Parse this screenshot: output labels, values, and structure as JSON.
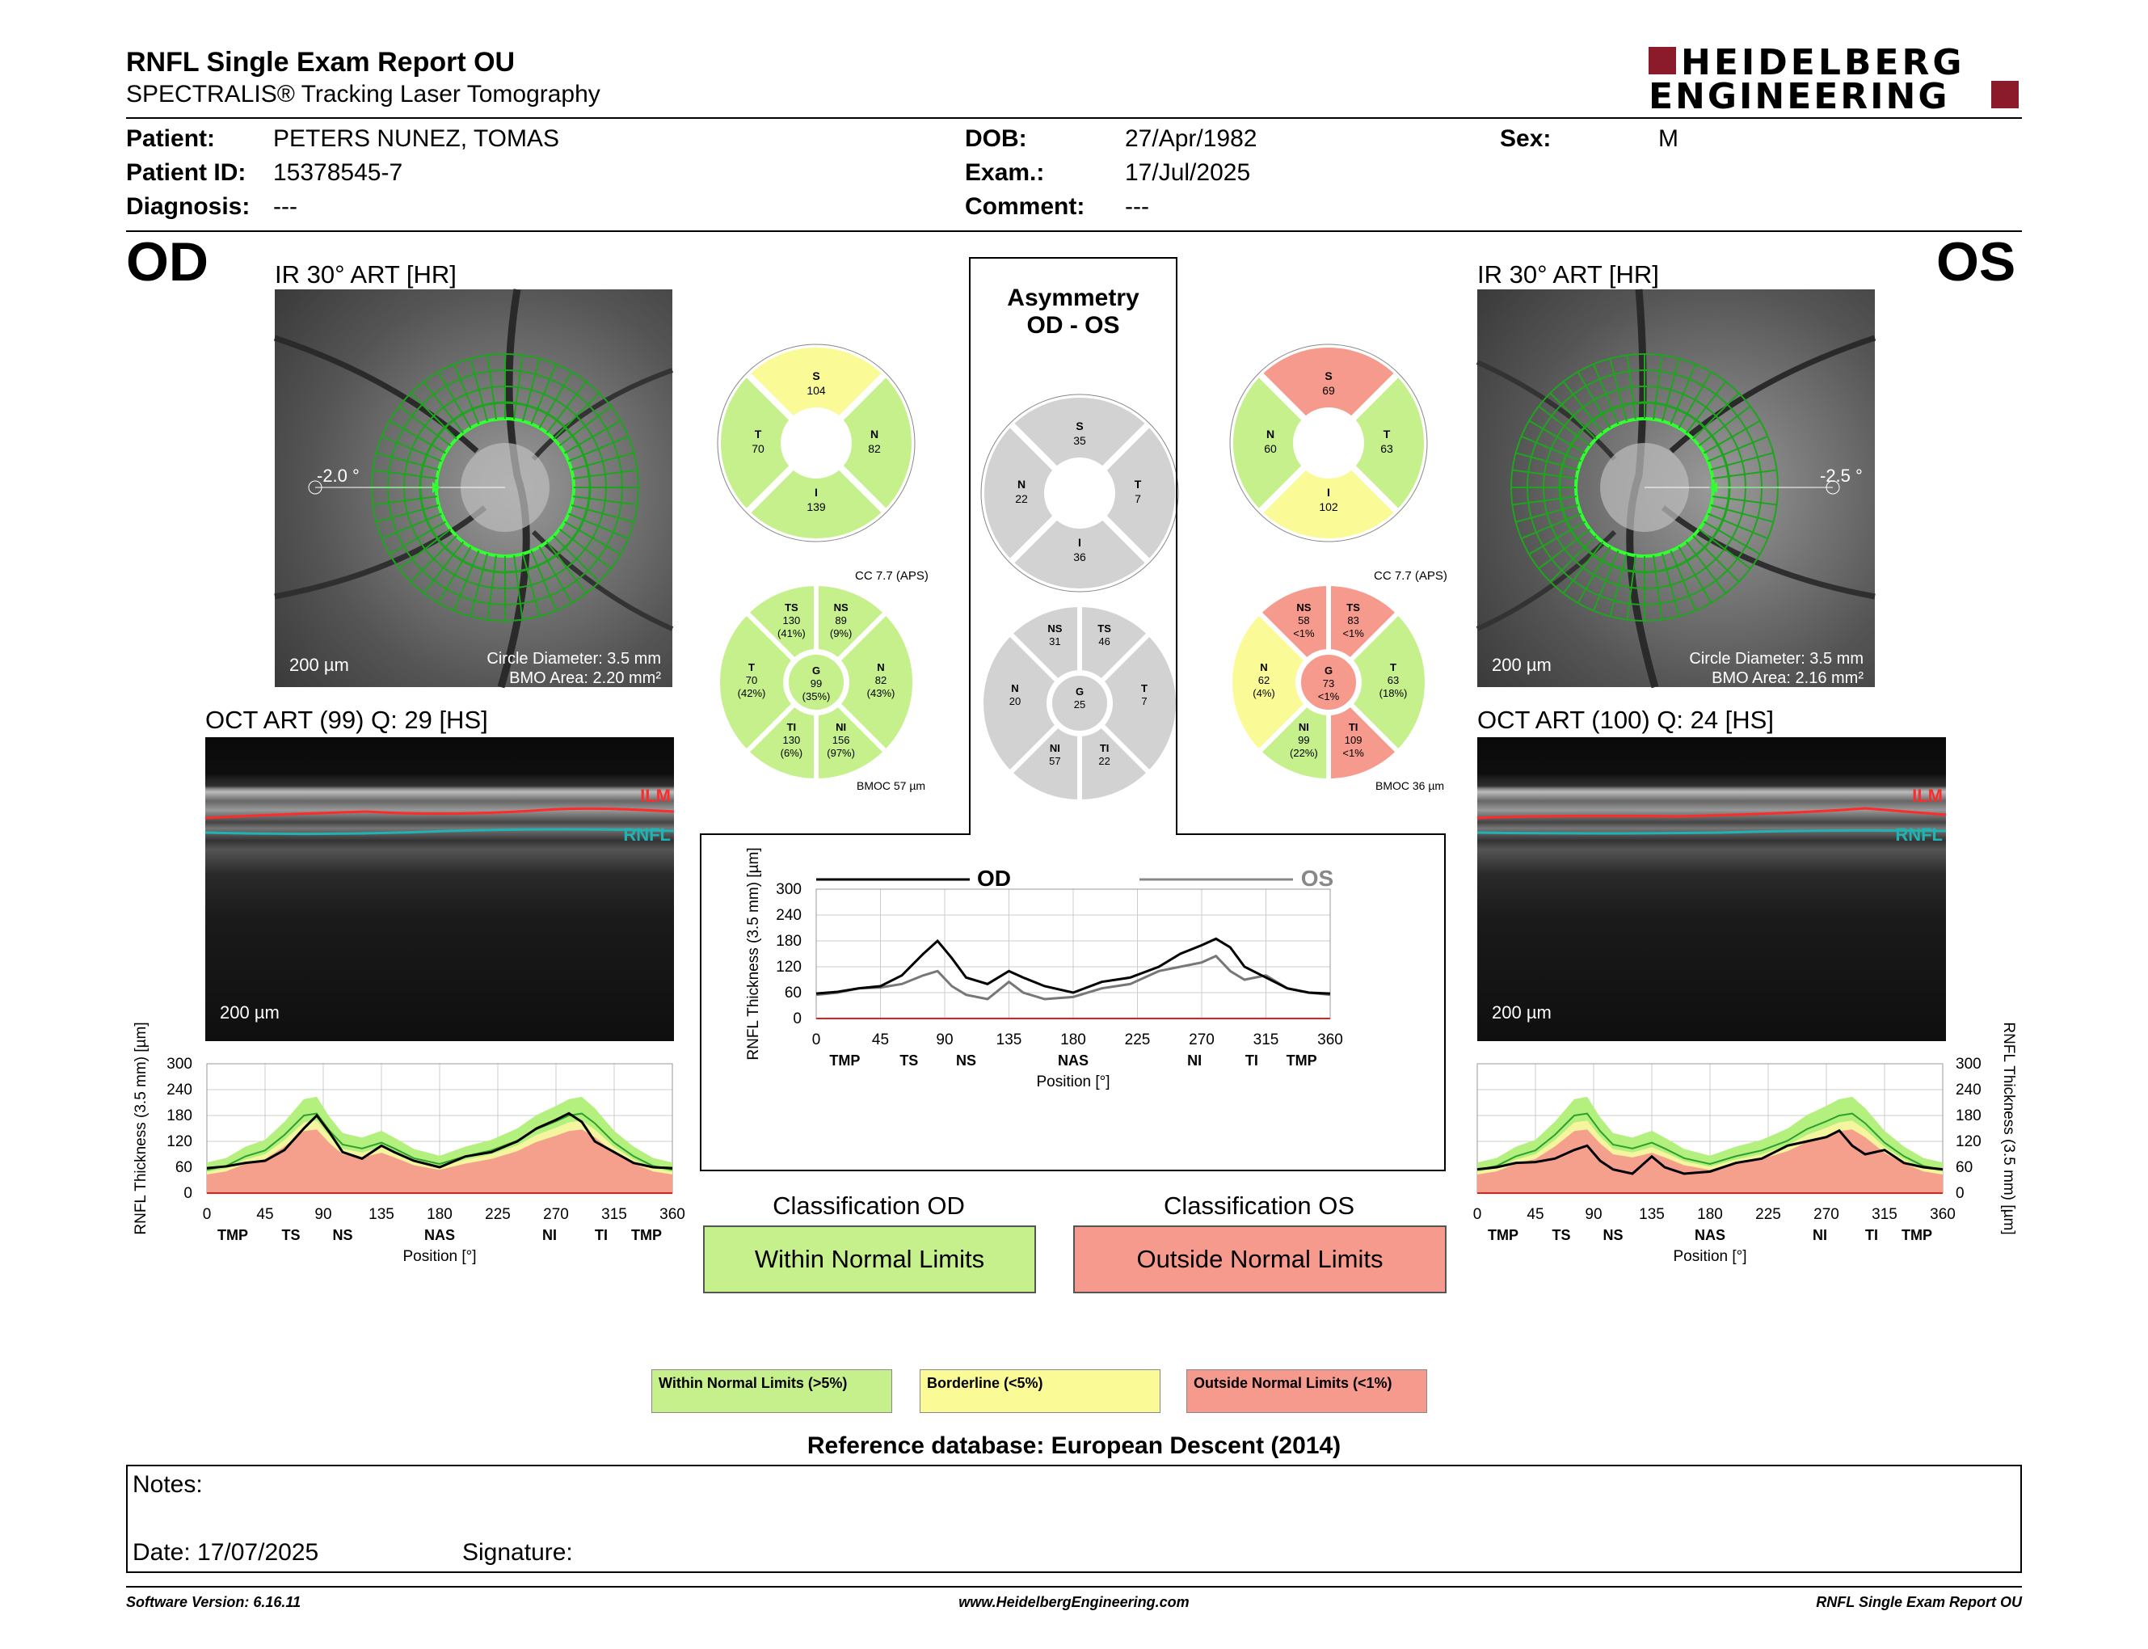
{
  "header": {
    "title": "RNFL Single Exam Report OU",
    "subtitle": "SPECTRALIS® Tracking Laser Tomography",
    "logo_line1": "HEIDELBERG",
    "logo_line2": "ENGINEERING"
  },
  "patient": {
    "patient_label": "Patient:",
    "patient_value": "PETERS NUNEZ, TOMAS",
    "id_label": "Patient ID:",
    "id_value": "15378545-7",
    "diagnosis_label": "Diagnosis:",
    "diagnosis_value": "---",
    "dob_label": "DOB:",
    "dob_value": "27/Apr/1982",
    "exam_label": "Exam.:",
    "exam_value": "17/Jul/2025",
    "comment_label": "Comment:",
    "comment_value": "---",
    "sex_label": "Sex:",
    "sex_value": "M"
  },
  "od": {
    "eye": "OD",
    "ir_title": "IR 30° ART [HR]",
    "angle": "-2.0 °",
    "scale": "200 µm",
    "circle_diameter": "Circle Diameter: 3.5 mm",
    "bmo_area": "BMO Area: 2.20 mm²",
    "oct_title": "OCT ART (99) Q: 29 [HS]",
    "oct_scale": "200 µm",
    "ilm": "ILM",
    "rnfl": "RNFL",
    "cc": "CC 7.7 (APS)",
    "bmoc": "BMOC 57 µm",
    "sectors4": {
      "S": "104",
      "T": "70",
      "N": "82",
      "I": "139"
    },
    "sectors6": {
      "TS": [
        "TS",
        "130",
        "(41%)"
      ],
      "NS": [
        "NS",
        "89",
        "(9%)"
      ],
      "T": [
        "T",
        "70",
        "(42%)"
      ],
      "G": [
        "G",
        "99",
        "(35%)"
      ],
      "N": [
        "N",
        "82",
        "(43%)"
      ],
      "TI": [
        "TI",
        "130",
        "(6%)"
      ],
      "NI": [
        "NI",
        "156",
        "(97%)"
      ]
    }
  },
  "os": {
    "eye": "OS",
    "ir_title": "IR 30° ART [HR]",
    "angle": "-2.5 °",
    "scale": "200 µm",
    "circle_diameter": "Circle Diameter: 3.5 mm",
    "bmo_area": "BMO Area: 2.16 mm²",
    "oct_title": "OCT ART (100) Q: 24 [HS]",
    "oct_scale": "200 µm",
    "ilm": "ILM",
    "rnfl": "RNFL",
    "cc": "CC 7.7 (APS)",
    "bmoc": "BMOC 36 µm",
    "sectors4": {
      "S": "69",
      "N": "60",
      "T": "63",
      "I": "102"
    },
    "sectors6": {
      "NS": [
        "NS",
        "58",
        "<1%"
      ],
      "TS": [
        "TS",
        "83",
        "<1%"
      ],
      "N": [
        "N",
        "62",
        "(4%)"
      ],
      "G": [
        "G",
        "73",
        "<1%"
      ],
      "T": [
        "T",
        "63",
        "(18%)"
      ],
      "NI": [
        "NI",
        "99",
        "(22%)"
      ],
      "TI": [
        "TI",
        "109",
        "<1%"
      ]
    }
  },
  "asymmetry": {
    "title1": "Asymmetry",
    "title2": "OD - OS",
    "sectors4": {
      "S": "35",
      "N": "22",
      "T": "7",
      "I": "36"
    },
    "sectors6": {
      "NS": "31",
      "TS": "46",
      "N": "20",
      "G": "25",
      "T": "7",
      "NI": "57",
      "TI": "22"
    }
  },
  "colors": {
    "green": "#c6f08c",
    "yellow": "#fafa96",
    "red": "#f59a8c",
    "gray": "#d2d2d2",
    "green_band": "#b4f07d",
    "yellow_band": "#f5f5a0",
    "red_band": "#f5a08c"
  },
  "axis": {
    "ylabel": "RNFL Thickness (3.5 mm) [µm]",
    "xlabel": "Position [°]",
    "xticks": [
      "0",
      "45",
      "90",
      "135",
      "180",
      "225",
      "270",
      "315",
      "360"
    ],
    "yticks": [
      "0",
      "60",
      "120",
      "180",
      "240",
      "300"
    ],
    "sector_labels": [
      "TMP",
      "TS",
      "NS",
      "NAS",
      "NI",
      "TI",
      "TMP"
    ],
    "legend_od": "OD",
    "legend_os": "OS"
  },
  "chart_data": [
    {
      "type": "line",
      "title": "",
      "xlabel": "Position [°]",
      "ylabel": "RNFL Thickness (3.5 mm) [µm]",
      "xlim": [
        0,
        360
      ],
      "ylim": [
        0,
        300
      ],
      "x": [
        0,
        15,
        30,
        45,
        60,
        75,
        85,
        95,
        105,
        120,
        135,
        145,
        160,
        180,
        200,
        220,
        240,
        255,
        270,
        280,
        290,
        300,
        315,
        330,
        345,
        360
      ],
      "series": [
        {
          "name": "OD",
          "values": [
            58,
            62,
            70,
            75,
            100,
            150,
            180,
            140,
            95,
            80,
            110,
            95,
            75,
            60,
            85,
            95,
            120,
            150,
            170,
            185,
            165,
            120,
            95,
            70,
            60,
            58
          ]
        },
        {
          "name": "OS",
          "values": [
            55,
            60,
            70,
            72,
            80,
            100,
            110,
            75,
            55,
            45,
            85,
            60,
            45,
            50,
            70,
            80,
            110,
            120,
            130,
            145,
            110,
            90,
            100,
            70,
            60,
            55
          ]
        }
      ]
    },
    {
      "type": "line",
      "xlabel": "Position [°]",
      "ylabel": "RNFL Thickness (3.5 mm) [µm]",
      "xlim": [
        0,
        360
      ],
      "ylim": [
        0,
        300
      ],
      "x": [
        0,
        15,
        30,
        45,
        60,
        75,
        85,
        95,
        105,
        120,
        135,
        145,
        160,
        180,
        200,
        220,
        240,
        255,
        270,
        280,
        290,
        300,
        315,
        330,
        345,
        360
      ],
      "series": [
        {
          "name": "OD",
          "values": [
            58,
            62,
            70,
            75,
            100,
            150,
            180,
            140,
            95,
            80,
            110,
            95,
            75,
            60,
            85,
            95,
            120,
            150,
            170,
            185,
            165,
            120,
            95,
            70,
            60,
            58
          ]
        }
      ]
    },
    {
      "type": "line",
      "xlabel": "Position [°]",
      "ylabel": "RNFL Thickness (3.5 mm) [µm]",
      "xlim": [
        0,
        360
      ],
      "ylim": [
        0,
        300
      ],
      "x": [
        0,
        15,
        30,
        45,
        60,
        75,
        85,
        95,
        105,
        120,
        135,
        145,
        160,
        180,
        200,
        220,
        240,
        255,
        270,
        280,
        290,
        300,
        315,
        330,
        345,
        360
      ],
      "series": [
        {
          "name": "OS",
          "values": [
            55,
            60,
            70,
            72,
            80,
            100,
            110,
            75,
            55,
            45,
            85,
            60,
            45,
            50,
            70,
            80,
            110,
            120,
            130,
            145,
            110,
            90,
            100,
            70,
            60,
            55
          ]
        }
      ]
    }
  ],
  "classification": {
    "od_title": "Classification OD",
    "od_value": "Within Normal Limits",
    "os_title": "Classification OS",
    "os_value": "Outside Normal Limits"
  },
  "legend": {
    "within": "Within Normal Limits (>5%)",
    "borderline": "Borderline (<5%)",
    "outside": "Outside Normal Limits (<1%)"
  },
  "reference_db": "Reference database: European Descent (2014)",
  "notes": {
    "notes_label": "Notes:",
    "date_label": "Date: 17/07/2025",
    "signature_label": "Signature:"
  },
  "footer": {
    "software": "Software Version: 6.16.11",
    "website": "www.HeidelbergEngineering.com",
    "report": "RNFL Single Exam Report OU"
  }
}
